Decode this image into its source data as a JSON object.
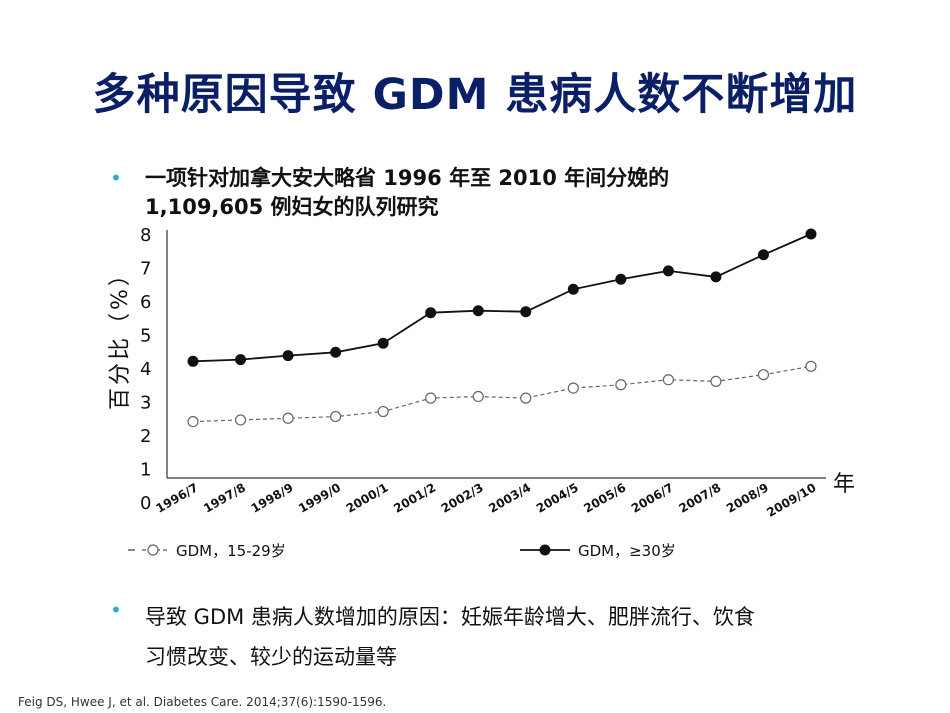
{
  "slide": {
    "title": "多种原因导致 GDM 患病人数不断增加",
    "bullet_glyph": "•",
    "bullet1_line1": "一项针对加拿大安大略省 1996 年至 2010 年间分娩的",
    "bullet1_line2": "1,109,605 例妇女的队列研究",
    "bullet2_line1": "导致 GDM 患病人数增加的原因：妊娠年龄增大、肥胖流行、饮食",
    "bullet2_line2": "习惯改变、较少的运动量等",
    "reference": "Feig DS, Hwee J, et al. Diabetes Care. 2014;37(6):1590-1596.",
    "accent_color": "#0b1f66",
    "bullet_color": "#2aa8d8"
  },
  "chart_data": {
    "type": "line",
    "title": "",
    "xlabel": "年",
    "ylabel": "百分比（%）",
    "ylim": [
      0,
      8
    ],
    "yticks": [
      0,
      1,
      2,
      3,
      4,
      5,
      6,
      7,
      8
    ],
    "grid": false,
    "legend_position": "bottom",
    "categories": [
      "1996/7",
      "1997/8",
      "1998/9",
      "1999/0",
      "2000/1",
      "2001/2",
      "2002/3",
      "2003/4",
      "2004/5",
      "2005/6",
      "2006/7",
      "2007/8",
      "2008/9",
      "2009/10"
    ],
    "series": [
      {
        "name": "GDM，15-29岁",
        "marker": "open-circle",
        "line_style": "dashed",
        "color": "#666666",
        "values": [
          2.4,
          2.45,
          2.5,
          2.55,
          2.7,
          3.1,
          3.15,
          3.1,
          3.4,
          3.5,
          3.65,
          3.6,
          3.8,
          4.05
        ]
      },
      {
        "name": "GDM，≥30岁",
        "marker": "filled-circle",
        "line_style": "solid",
        "color": "#111111",
        "values": [
          4.2,
          4.25,
          4.37,
          4.47,
          4.74,
          5.65,
          5.71,
          5.68,
          6.35,
          6.65,
          6.9,
          6.72,
          7.38,
          8.0
        ]
      }
    ]
  }
}
